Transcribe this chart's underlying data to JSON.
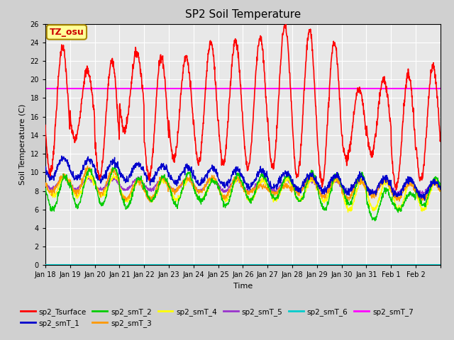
{
  "title": "SP2 Soil Temperature",
  "ylabel": "Soil Temperature (C)",
  "xlabel": "Time",
  "ylim": [
    0,
    26
  ],
  "yticks": [
    0,
    2,
    4,
    6,
    8,
    10,
    12,
    14,
    16,
    18,
    20,
    22,
    24,
    26
  ],
  "horizontal_line_y": 19.0,
  "tz_label": "TZ_osu",
  "tz_bg": "#FFFF99",
  "tz_fg": "#CC0000",
  "fig_bg": "#D0D0D0",
  "plot_bg": "#E8E8E8",
  "line_colors": {
    "sp2_Tsurface": "#FF0000",
    "sp2_smT_1": "#0000CC",
    "sp2_smT_2": "#00CC00",
    "sp2_smT_3": "#FF9900",
    "sp2_smT_4": "#FFFF00",
    "sp2_smT_5": "#9933CC",
    "sp2_smT_6": "#00CCCC",
    "sp2_smT_7": "#FF00FF"
  },
  "n_days": 16,
  "x_tick_labels": [
    "Jan 18",
    "Jan 19",
    "Jan 20",
    "Jan 21",
    "Jan 22",
    "Jan 23",
    "Jan 24",
    "Jan 25",
    "Jan 26",
    "Jan 27",
    "Jan 28",
    "Jan 29",
    "Jan 30",
    "Jan 31",
    "Feb 1",
    "Feb 2"
  ],
  "points_per_day": 96
}
